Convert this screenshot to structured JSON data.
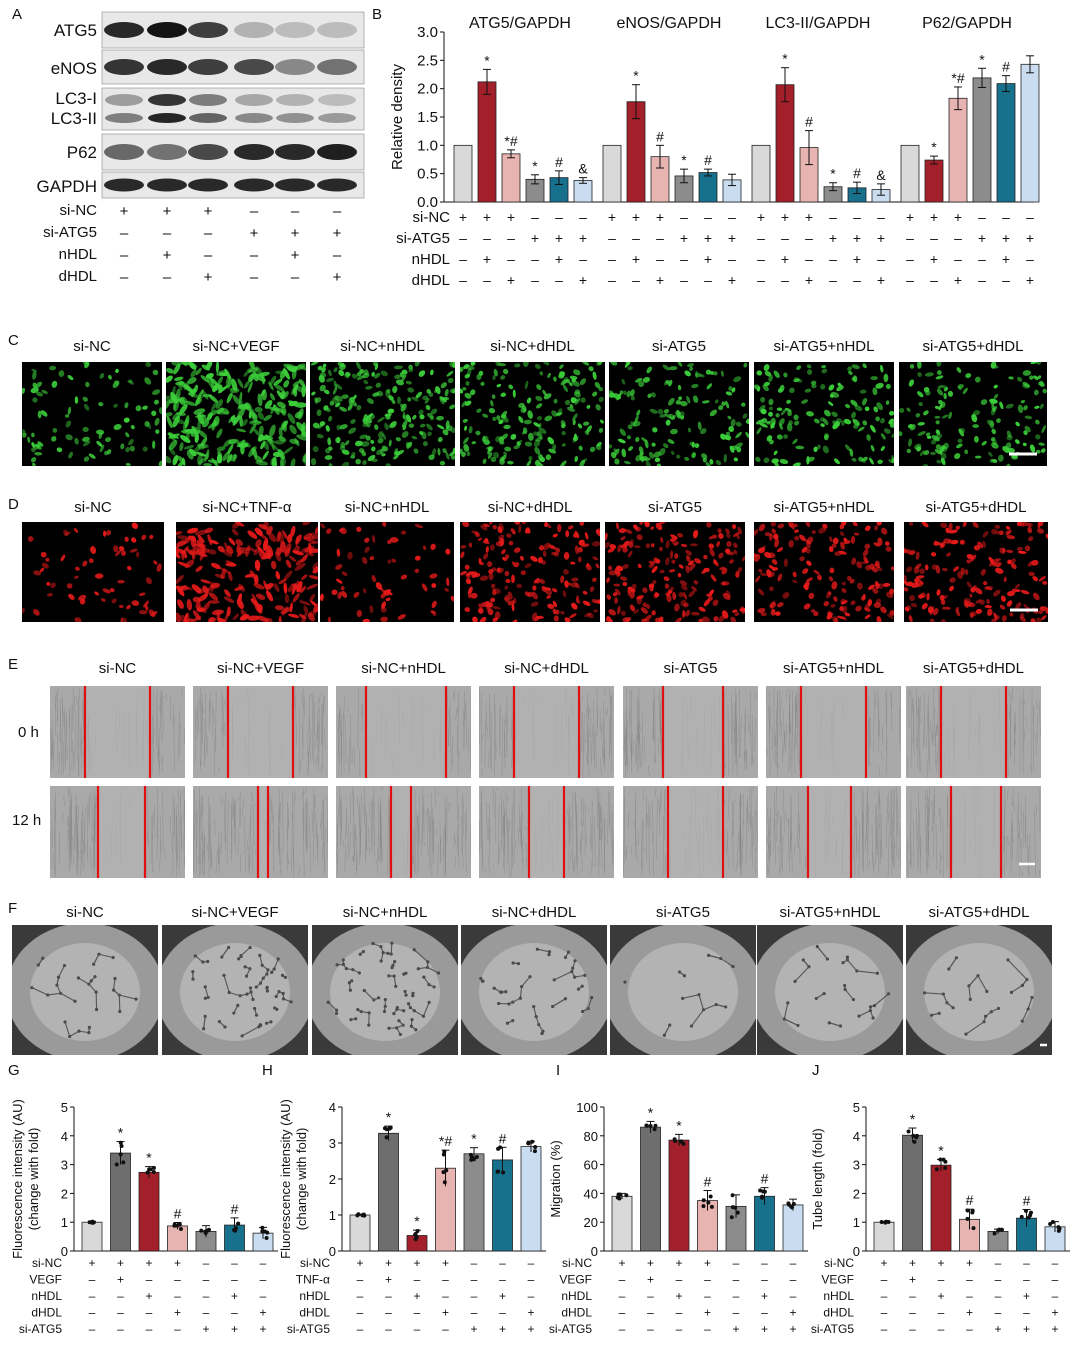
{
  "panel_letters": {
    "A": "A",
    "B": "B",
    "C": "C",
    "D": "D",
    "E": "E",
    "F": "F",
    "G": "G",
    "H": "H",
    "I": "I",
    "J": "J"
  },
  "panel_A": {
    "blot_labels": [
      "ATG5",
      "eNOS",
      "LC3-I",
      "LC3-II",
      "P62",
      "GAPDH"
    ],
    "row_labels": [
      "si-NC",
      "si-ATG5",
      "nHDL",
      "dHDL"
    ],
    "row_signs": [
      [
        "+",
        "+",
        "+",
        "–",
        "–",
        "–"
      ],
      [
        "–",
        "–",
        "–",
        "+",
        "+",
        "+"
      ],
      [
        "–",
        "+",
        "–",
        "–",
        "+",
        "–"
      ],
      [
        "–",
        "–",
        "+",
        "–",
        "–",
        "+"
      ]
    ]
  },
  "panel_B": {
    "ylabel": "Relative density",
    "row_labels": [
      "si-NC",
      "si-ATG5",
      "nHDL",
      "dHDL"
    ],
    "row_signs": [
      [
        "+",
        "+",
        "+",
        "–",
        "–",
        "–"
      ],
      [
        "–",
        "–",
        "–",
        "+",
        "+",
        "+"
      ],
      [
        "–",
        "+",
        "–",
        "–",
        "+",
        "–"
      ],
      [
        "–",
        "–",
        "+",
        "–",
        "–",
        "+"
      ]
    ]
  },
  "panel_C": {
    "labels": [
      "si-NC",
      "si-NC+VEGF",
      "si-NC+nHDL",
      "si-NC+dHDL",
      "si-ATG5",
      "si-ATG5+nHDL",
      "si-ATG5+dHDL"
    ]
  },
  "panel_D": {
    "labels": [
      "si-NC",
      "si-NC+TNF-α",
      "si-NC+nHDL",
      "si-NC+dHDL",
      "si-ATG5",
      "si-ATG5+nHDL",
      "si-ATG5+dHDL"
    ]
  },
  "panel_E": {
    "labels": [
      "si-NC",
      "si-NC+VEGF",
      "si-NC+nHDL",
      "si-NC+dHDL",
      "si-ATG5",
      "si-ATG5+nHDL",
      "si-ATG5+dHDL"
    ],
    "time_labels": [
      "0 h",
      "12 h"
    ]
  },
  "panel_F": {
    "labels": [
      "si-NC",
      "si-NC+VEGF",
      "si-NC+nHDL",
      "si-NC+dHDL",
      "si-ATG5",
      "si-ATG5+nHDL",
      "si-ATG5+dHDL"
    ]
  },
  "bottom_rows": {
    "G": {
      "labels": [
        "si-NC",
        "VEGF",
        "nHDL",
        "dHDL",
        "si-ATG5"
      ]
    },
    "H": {
      "labels": [
        "si-NC",
        "TNF-α",
        "nHDL",
        "dHDL",
        "si-ATG5"
      ]
    },
    "I": {
      "labels": [
        "si-NC",
        "VEGF",
        "nHDL",
        "dHDL",
        "si-ATG5"
      ]
    },
    "J": {
      "labels": [
        "si-NC",
        "VEGF",
        "nHDL",
        "dHDL",
        "si-ATG5"
      ]
    },
    "signs": [
      [
        "+",
        "+",
        "+",
        "+",
        "–",
        "–",
        "–"
      ],
      [
        "–",
        "+",
        "–",
        "–",
        "–",
        "–",
        "–"
      ],
      [
        "–",
        "–",
        "+",
        "–",
        "–",
        "+",
        "–"
      ],
      [
        "–",
        "–",
        "–",
        "+",
        "–",
        "–",
        "+"
      ],
      [
        "–",
        "–",
        "–",
        "–",
        "+",
        "+",
        "+"
      ]
    ]
  },
  "colors": {
    "light_gray": "#d9d9d9",
    "dark_red": "#a31f2a",
    "pink": "#e8b4b2",
    "gray": "#8c8c8c",
    "teal": "#17708c",
    "light_blue": "#c9dcf0",
    "dark_gray": "#6e6e6e",
    "scale_bar": "#ffffff",
    "wound_line": "#e01010"
  },
  "chart_data": [
    {
      "type": "bar",
      "title": "ATG5/GAPDH",
      "ylabel": "Relative density",
      "ylim": [
        0,
        3.0
      ],
      "yticks": [
        "0.0",
        "0.5",
        "1.0",
        "1.5",
        "2.0",
        "2.5",
        "3.0"
      ],
      "values": [
        1.0,
        2.12,
        0.85,
        0.4,
        0.43,
        0.38
      ],
      "errors": [
        0,
        0.22,
        0.07,
        0.08,
        0.12,
        0.05
      ],
      "annotations": [
        "",
        "*",
        "*#",
        "*",
        "#",
        "&"
      ],
      "bar_colors": [
        "light_gray",
        "dark_red",
        "pink",
        "gray",
        "teal",
        "light_blue"
      ]
    },
    {
      "type": "bar",
      "title": "eNOS/GAPDH",
      "ylim": [
        0,
        3.0
      ],
      "values": [
        1.0,
        1.77,
        0.8,
        0.46,
        0.52,
        0.39
      ],
      "errors": [
        0,
        0.3,
        0.2,
        0.12,
        0.06,
        0.1
      ],
      "annotations": [
        "",
        "*",
        "#",
        "*",
        "#",
        ""
      ],
      "bar_colors": [
        "light_gray",
        "dark_red",
        "pink",
        "gray",
        "teal",
        "light_blue"
      ]
    },
    {
      "type": "bar",
      "title": "LC3-II/GAPDH",
      "ylim": [
        0,
        3.0
      ],
      "values": [
        1.0,
        2.07,
        0.96,
        0.27,
        0.25,
        0.22
      ],
      "errors": [
        0,
        0.3,
        0.3,
        0.07,
        0.1,
        0.1
      ],
      "annotations": [
        "",
        "*",
        "#",
        "*",
        "#",
        "&"
      ],
      "bar_colors": [
        "light_gray",
        "dark_red",
        "pink",
        "gray",
        "teal",
        "light_blue"
      ]
    },
    {
      "type": "bar",
      "title": "P62/GAPDH",
      "ylim": [
        0,
        3.0
      ],
      "values": [
        1.0,
        0.74,
        1.83,
        2.19,
        2.09,
        2.43
      ],
      "errors": [
        0,
        0.07,
        0.2,
        0.17,
        0.14,
        0.15
      ],
      "annotations": [
        "",
        "*",
        "*#",
        "*",
        "#",
        ""
      ],
      "bar_colors": [
        "light_gray",
        "dark_red",
        "pink",
        "gray",
        "light_blue_teal",
        "light_blue"
      ]
    },
    {
      "type": "bar",
      "ylabel": "Fluorescence intensity (AU)\n(change with fold)",
      "ylim": [
        0,
        5
      ],
      "yticks": [
        "0",
        "1",
        "2",
        "3",
        "4",
        "5"
      ],
      "values": [
        1.0,
        3.4,
        2.73,
        0.87,
        0.68,
        0.9,
        0.62
      ],
      "errors": [
        0.03,
        0.4,
        0.2,
        0.12,
        0.2,
        0.25,
        0.2
      ],
      "annotations": [
        "",
        "*",
        "*",
        "#",
        "",
        "#",
        ""
      ],
      "bar_colors": [
        "light_gray",
        "dark_gray",
        "dark_red",
        "pink",
        "gray",
        "teal",
        "light_blue"
      ]
    },
    {
      "type": "bar",
      "ylabel": "Fluorescence intensity (AU)\n(change with fold)",
      "ylim": [
        0,
        4
      ],
      "yticks": [
        "0",
        "1",
        "2",
        "3",
        "4"
      ],
      "values": [
        1.0,
        3.27,
        0.43,
        2.3,
        2.7,
        2.53,
        2.9
      ],
      "errors": [
        0.02,
        0.2,
        0.15,
        0.5,
        0.17,
        0.35,
        0.15
      ],
      "annotations": [
        "",
        "*",
        "*",
        "*#",
        "*",
        "#",
        ""
      ],
      "bar_colors": [
        "light_gray",
        "dark_gray",
        "dark_red",
        "pink",
        "gray",
        "teal",
        "light_blue"
      ]
    },
    {
      "type": "bar",
      "ylabel": "Migration (%)",
      "ylim": [
        0,
        100
      ],
      "yticks": [
        "0",
        "20",
        "40",
        "60",
        "80",
        "100"
      ],
      "values": [
        38,
        86,
        77,
        35,
        31,
        38,
        32
      ],
      "errors": [
        2,
        4,
        4,
        7,
        8,
        6,
        4
      ],
      "annotations": [
        "",
        "*",
        "*",
        "#",
        "",
        "#",
        ""
      ],
      "bar_colors": [
        "light_gray",
        "dark_gray",
        "dark_red",
        "pink",
        "gray",
        "teal",
        "light_blue"
      ]
    },
    {
      "type": "bar",
      "ylabel": "Tube length (fold)",
      "ylim": [
        0,
        5
      ],
      "yticks": [
        "0",
        "1",
        "2",
        "3",
        "4",
        "5"
      ],
      "values": [
        1.0,
        4.02,
        2.98,
        1.1,
        0.68,
        1.14,
        0.84
      ],
      "errors": [
        0.02,
        0.25,
        0.2,
        0.35,
        0.08,
        0.3,
        0.18
      ],
      "annotations": [
        "",
        "*",
        "*",
        "#",
        "",
        "#",
        ""
      ],
      "bar_colors": [
        "light_gray",
        "dark_gray",
        "dark_red",
        "pink",
        "gray",
        "teal",
        "light_blue"
      ]
    }
  ]
}
